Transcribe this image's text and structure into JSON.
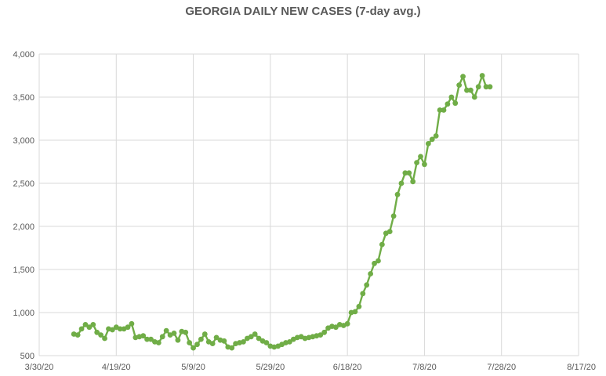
{
  "chart_data": {
    "type": "line",
    "title": "GEORGIA DAILY NEW CASES (7-day avg.)",
    "xlabel": "",
    "ylabel": "",
    "ylim": [
      500,
      4000
    ],
    "xlim": [
      "2020-03-30",
      "2020-08-17"
    ],
    "grid": true,
    "legend": "none",
    "colors": {
      "series": "#70ad47",
      "grid": "#d9d9d9",
      "text": "#595959"
    },
    "y_ticks": [
      "500",
      "1,000",
      "1,500",
      "2,000",
      "2,500",
      "3,000",
      "3,500",
      "4,000"
    ],
    "x_ticks": [
      "3/30/20",
      "4/19/20",
      "5/9/20",
      "5/29/20",
      "6/18/20",
      "7/8/20",
      "7/28/20",
      "8/17/20"
    ],
    "series": [
      {
        "x": [
          "2020-04-08",
          "2020-04-09",
          "2020-04-10",
          "2020-04-11",
          "2020-04-12",
          "2020-04-13",
          "2020-04-14",
          "2020-04-15",
          "2020-04-16",
          "2020-04-17",
          "2020-04-18",
          "2020-04-19",
          "2020-04-20",
          "2020-04-21",
          "2020-04-22",
          "2020-04-23",
          "2020-04-24",
          "2020-04-25",
          "2020-04-26",
          "2020-04-27",
          "2020-04-28",
          "2020-04-29",
          "2020-04-30",
          "2020-05-01",
          "2020-05-02",
          "2020-05-03",
          "2020-05-04",
          "2020-05-05",
          "2020-05-06",
          "2020-05-07",
          "2020-05-08",
          "2020-05-09",
          "2020-05-10",
          "2020-05-11",
          "2020-05-12",
          "2020-05-13",
          "2020-05-14",
          "2020-05-15",
          "2020-05-16",
          "2020-05-17",
          "2020-05-18",
          "2020-05-19",
          "2020-05-20",
          "2020-05-21",
          "2020-05-22",
          "2020-05-23",
          "2020-05-24",
          "2020-05-25",
          "2020-05-26",
          "2020-05-27",
          "2020-05-28",
          "2020-05-29",
          "2020-05-30",
          "2020-05-31",
          "2020-06-01",
          "2020-06-02",
          "2020-06-03",
          "2020-06-04",
          "2020-06-05",
          "2020-06-06",
          "2020-06-07",
          "2020-06-08",
          "2020-06-09",
          "2020-06-10",
          "2020-06-11",
          "2020-06-12",
          "2020-06-13",
          "2020-06-14",
          "2020-06-15",
          "2020-06-16",
          "2020-06-17",
          "2020-06-18",
          "2020-06-19",
          "2020-06-20",
          "2020-06-21",
          "2020-06-22",
          "2020-06-23",
          "2020-06-24",
          "2020-06-25",
          "2020-06-26",
          "2020-06-27",
          "2020-06-28",
          "2020-06-29",
          "2020-06-30",
          "2020-07-01",
          "2020-07-02",
          "2020-07-03",
          "2020-07-04",
          "2020-07-05",
          "2020-07-06",
          "2020-07-07",
          "2020-07-08",
          "2020-07-09",
          "2020-07-10",
          "2020-07-11",
          "2020-07-12",
          "2020-07-13",
          "2020-07-14",
          "2020-07-15",
          "2020-07-16",
          "2020-07-17",
          "2020-07-18",
          "2020-07-19",
          "2020-07-20",
          "2020-07-21",
          "2020-07-22",
          "2020-07-23",
          "2020-07-24",
          "2020-07-25"
        ],
        "values": [
          750,
          740,
          810,
          860,
          830,
          860,
          770,
          740,
          700,
          810,
          800,
          830,
          810,
          810,
          830,
          870,
          710,
          720,
          730,
          690,
          690,
          660,
          650,
          720,
          790,
          740,
          760,
          680,
          780,
          770,
          650,
          590,
          630,
          690,
          750,
          660,
          640,
          710,
          680,
          670,
          600,
          590,
          640,
          650,
          660,
          700,
          720,
          750,
          700,
          670,
          650,
          610,
          600,
          610,
          630,
          650,
          660,
          690,
          710,
          720,
          700,
          710,
          720,
          730,
          740,
          770,
          820,
          840,
          830,
          860,
          850,
          870,
          1000,
          1010,
          1070,
          1220,
          1320,
          1450,
          1570,
          1600,
          1790,
          1920,
          1940,
          2120,
          2370,
          2500,
          2620,
          2620,
          2520,
          2740,
          2810,
          2720,
          2960,
          3010,
          3050,
          3350,
          3350,
          3420,
          3500,
          3430,
          3640,
          3740,
          3580,
          3580,
          3500,
          3620,
          3750,
          3620,
          3620
        ]
      }
    ]
  }
}
